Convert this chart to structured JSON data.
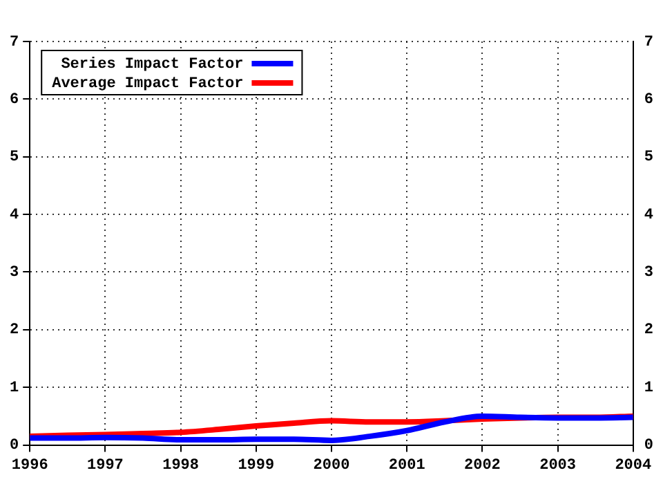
{
  "chart_data": {
    "type": "line",
    "x": [
      1996,
      1996.5,
      1997,
      1997.5,
      1998,
      1998.5,
      1999,
      1999.5,
      2000,
      2000.5,
      2001,
      2001.5,
      2002,
      2002.5,
      2003,
      2003.5,
      2004
    ],
    "series": [
      {
        "name": "Series Impact Factor",
        "color": "#0000ff",
        "values": [
          0.12,
          0.12,
          0.13,
          0.12,
          0.09,
          0.09,
          0.1,
          0.1,
          0.08,
          0.15,
          0.25,
          0.4,
          0.5,
          0.48,
          0.47,
          0.47,
          0.48
        ]
      },
      {
        "name": "Average Impact Factor",
        "color": "#ff0000",
        "values": [
          0.15,
          0.17,
          0.18,
          0.2,
          0.22,
          0.27,
          0.33,
          0.38,
          0.42,
          0.4,
          0.4,
          0.42,
          0.45,
          0.47,
          0.48,
          0.48,
          0.5
        ]
      }
    ],
    "xlim": [
      1996,
      2004
    ],
    "xticks": [
      1996,
      1997,
      1998,
      1999,
      2000,
      2001,
      2002,
      2003,
      2004
    ],
    "ylim": [
      0,
      7
    ],
    "yticks": [
      0,
      1,
      2,
      3,
      4,
      5,
      6,
      7
    ],
    "y2lim": [
      0,
      7
    ],
    "y2ticks": [
      0,
      1,
      2,
      3,
      4,
      5,
      6,
      7
    ],
    "grid": true,
    "legend": "top left",
    "marker": "none",
    "line_style": "solid"
  }
}
